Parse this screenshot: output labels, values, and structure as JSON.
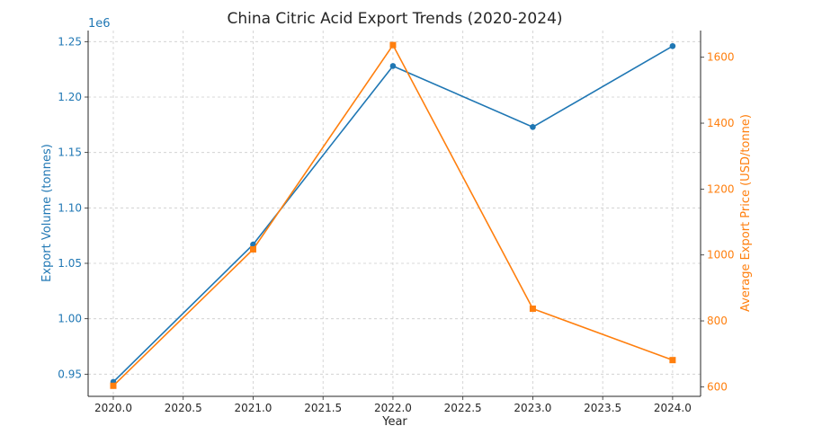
{
  "chart_data": {
    "type": "line",
    "title": "China Citric Acid Export Trends (2020-2024)",
    "xlabel": "Year",
    "x": [
      2020,
      2021,
      2022,
      2023,
      2024
    ],
    "xlim": [
      2019.82,
      2024.2
    ],
    "xticks": [
      "2020.0",
      "2020.5",
      "2021.0",
      "2021.5",
      "2022.0",
      "2022.5",
      "2023.0",
      "2023.5",
      "2024.0"
    ],
    "grid": true,
    "colors": {
      "volume": "#1f77b4",
      "price": "#ff7f0e"
    },
    "left_axis": {
      "label": "Export Volume (tonnes)",
      "offset_label": "1e6",
      "ylim": [
        0.93,
        1.26
      ],
      "ticks": [
        "0.95",
        "1.00",
        "1.05",
        "1.10",
        "1.15",
        "1.20",
        "1.25"
      ]
    },
    "right_axis": {
      "label": "Average Export Price (USD/tonne)",
      "ylim": [
        571,
        1681
      ],
      "ticks": [
        "600",
        "800",
        "1000",
        "1200",
        "1400",
        "1600"
      ]
    },
    "series": [
      {
        "axis": "left",
        "marker": "circle",
        "values": [
          0.943,
          1.067,
          1.228,
          1.173,
          1.246
        ]
      },
      {
        "axis": "right",
        "marker": "square",
        "values": [
          603,
          1017,
          1637,
          837,
          681
        ]
      }
    ]
  }
}
